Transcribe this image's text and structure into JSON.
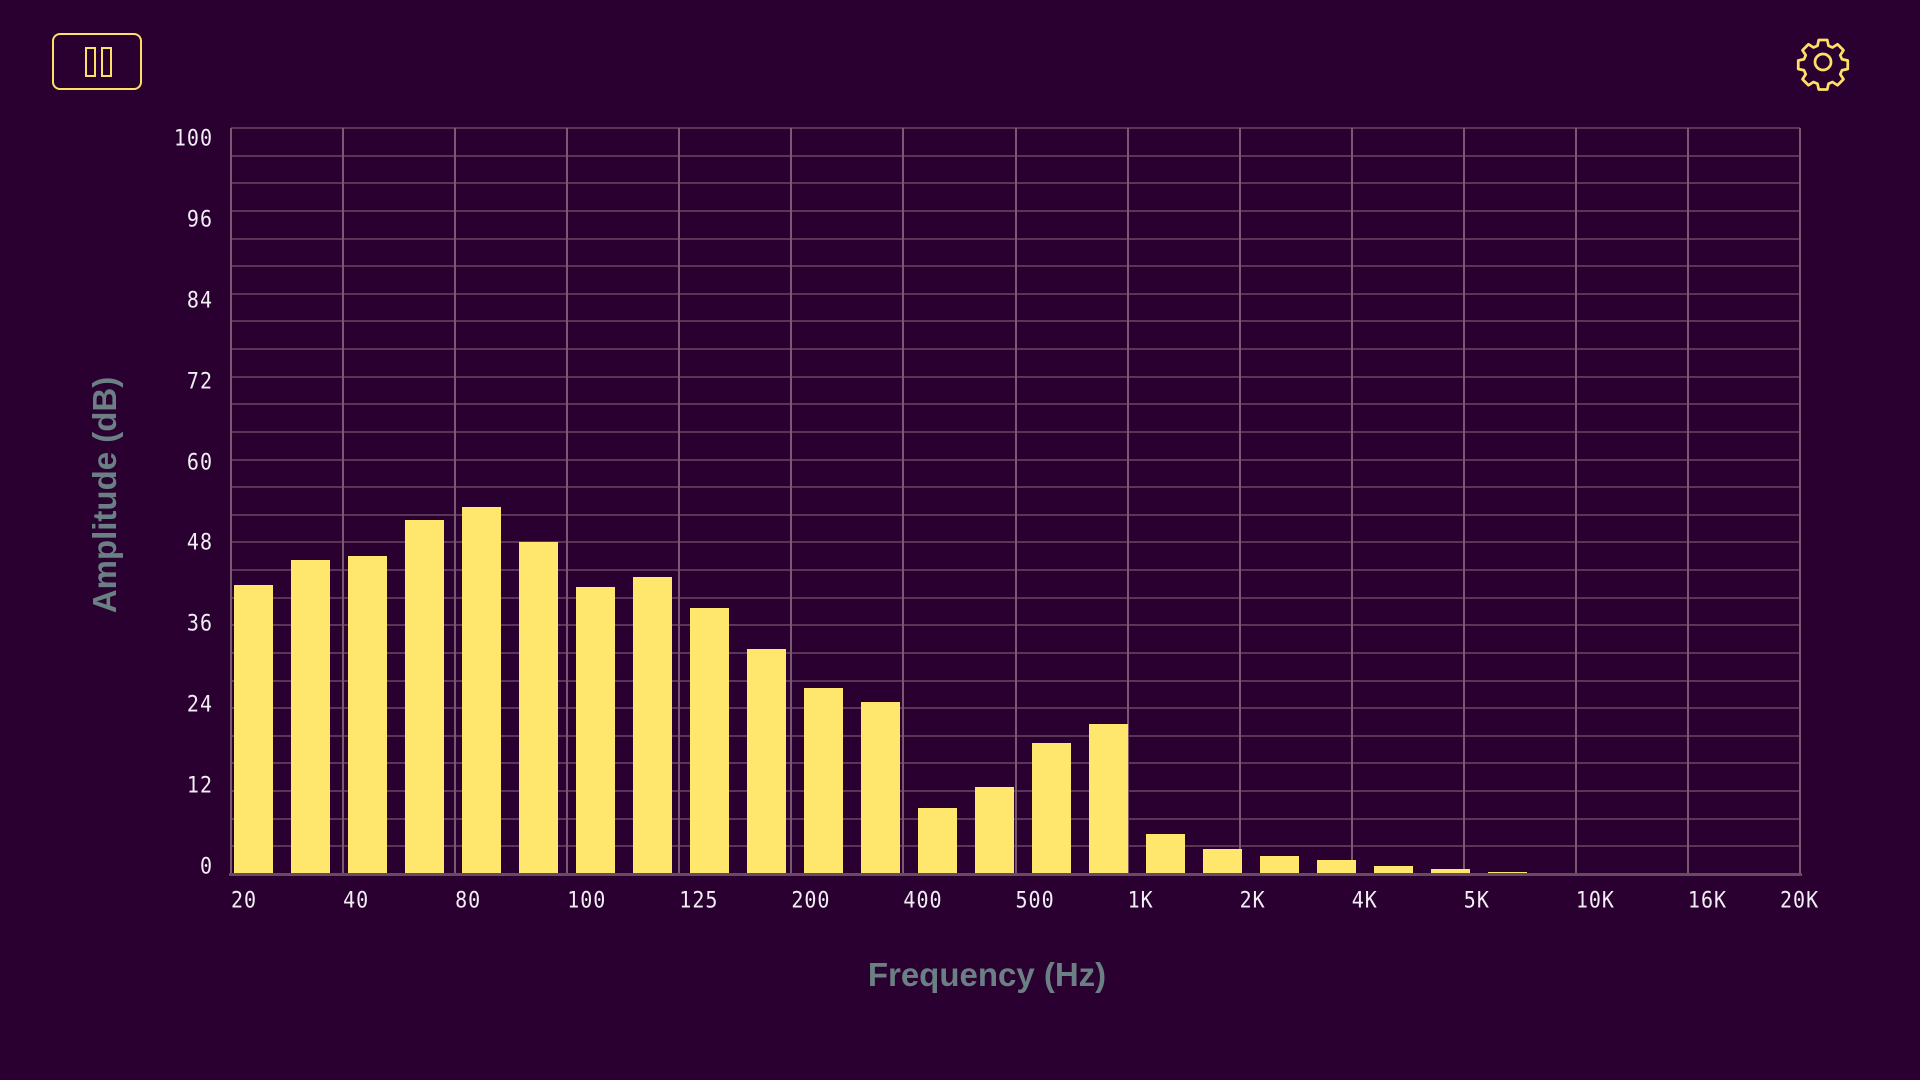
{
  "toolbar": {
    "pause_button": {
      "icon": "pause-icon",
      "label": "Pause"
    },
    "settings_button": {
      "icon": "gear-icon",
      "label": "Settings"
    }
  },
  "colors": {
    "background": "#2a0030",
    "bar": "#ffe66d",
    "accent": "#ffe066",
    "axis_title": "#6b8084",
    "tick_label": "#f2eef5",
    "grid_major": "#7a5a6e",
    "grid_minor": "#5a3555"
  },
  "chart_data": {
    "type": "bar",
    "title": "",
    "xlabel": "Frequency (Hz)",
    "ylabel": "Amplitude (dB)",
    "ylim": [
      0,
      100
    ],
    "grid": true,
    "legend": null,
    "y_ticks": [
      "100",
      "96",
      "84",
      "72",
      "60",
      "48",
      "36",
      "24",
      "12",
      "0"
    ],
    "x_ticks": [
      "20",
      "40",
      "80",
      "100",
      "125",
      "200",
      "400",
      "500",
      "1K",
      "2K",
      "4K",
      "5K",
      "10K",
      "16K",
      "20K"
    ],
    "bar_count": 24,
    "values": [
      38.7,
      42.1,
      42.6,
      47.5,
      49.2,
      44.5,
      38.5,
      39.8,
      35.7,
      30.2,
      24.9,
      23.1,
      8.8,
      11.7,
      17.6,
      20.1,
      5.4,
      3.4,
      2.4,
      1.9,
      1.1,
      0.7,
      0.3,
      0.15
    ]
  }
}
